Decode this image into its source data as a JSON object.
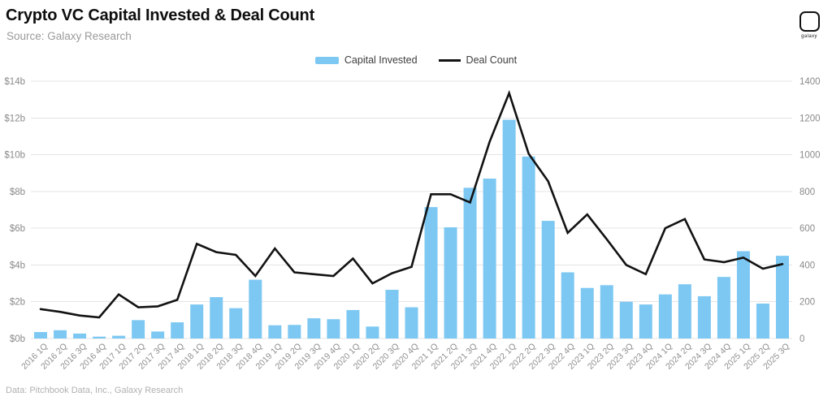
{
  "header": {
    "title": "Crypto VC Capital Invested & Deal Count",
    "source": "Source: Galaxy Research",
    "logo_text": "galaxy"
  },
  "legend": [
    {
      "label": "Capital Invested",
      "type": "bar"
    },
    {
      "label": "Deal Count",
      "type": "line"
    }
  ],
  "footer": {
    "credit": "Data: Pitchbook Data, Inc., Galaxy Research"
  },
  "colors": {
    "bar": "#7DC8F2",
    "line": "#121212",
    "grid": "#e4e4e4",
    "axis_text": "#8a8a8a",
    "x_axis_text": "#8f8f8f"
  },
  "chart_data": {
    "type": "bar+line",
    "title": "Crypto VC Capital Invested & Deal Count",
    "grid": true,
    "legend_position": "top-center",
    "categories": [
      "2016 1Q",
      "2016 2Q",
      "2016 3Q",
      "2016 4Q",
      "2017 1Q",
      "2017 2Q",
      "2017 3Q",
      "2017 4Q",
      "2018 1Q",
      "2018 2Q",
      "2018 3Q",
      "2018 4Q",
      "2019 1Q",
      "2019 2Q",
      "2019 3Q",
      "2019 4Q",
      "2020 1Q",
      "2020 2Q",
      "2020 3Q",
      "2020 4Q",
      "2021 1Q",
      "2021 2Q",
      "2021 3Q",
      "2021 4Q",
      "2022 1Q",
      "2022 2Q",
      "2022 3Q",
      "2022 4Q",
      "2023 1Q",
      "2023 2Q",
      "2023 3Q",
      "2023 4Q",
      "2024 1Q",
      "2024 2Q",
      "2024 3Q",
      "2024 4Q",
      "2025 1Q",
      "2025 2Q",
      "2025 3Q"
    ],
    "series": [
      {
        "name": "Capital Invested",
        "type": "bar",
        "axis": "left",
        "unit": "$ billions",
        "values": [
          0.35,
          0.45,
          0.27,
          0.1,
          0.15,
          1.0,
          0.38,
          0.88,
          1.85,
          2.25,
          1.65,
          3.2,
          0.72,
          0.74,
          1.1,
          1.05,
          1.55,
          0.65,
          2.65,
          1.7,
          7.15,
          6.05,
          8.2,
          8.7,
          11.9,
          9.9,
          6.4,
          3.6,
          2.75,
          2.9,
          2.0,
          1.85,
          2.4,
          2.95,
          2.3,
          3.35,
          4.75,
          1.9,
          4.5
        ]
      },
      {
        "name": "Deal Count",
        "type": "line",
        "axis": "right",
        "unit": "deals",
        "values": [
          160,
          145,
          125,
          115,
          240,
          170,
          175,
          210,
          515,
          470,
          455,
          340,
          490,
          360,
          350,
          340,
          435,
          300,
          355,
          390,
          785,
          785,
          740,
          1070,
          1335,
          1005,
          855,
          575,
          675,
          540,
          400,
          350,
          600,
          650,
          430,
          415,
          440,
          380,
          405
        ]
      }
    ],
    "left_axis": {
      "min": 0,
      "max": 14,
      "tick_labels": [
        "$0b",
        "$2b",
        "$4b",
        "$6b",
        "$8b",
        "$10b",
        "$12b",
        "$14b"
      ]
    },
    "right_axis": {
      "min": 0,
      "max": 1400,
      "tick_labels": [
        "0",
        "200",
        "400",
        "600",
        "800",
        "1000",
        "1200",
        "1400"
      ]
    }
  }
}
